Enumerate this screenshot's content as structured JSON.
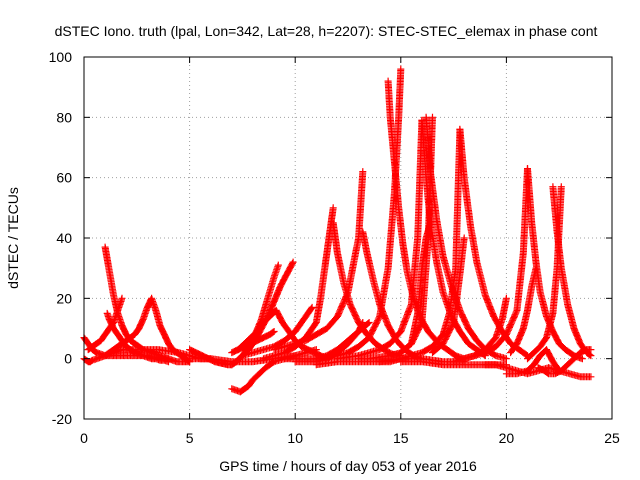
{
  "chart_data": {
    "type": "scatter",
    "title": "dSTEC Iono. truth (lpal, Lon=342, Lat=28, h=2207): STEC-STEC_elemax in phase cont",
    "xlabel": "GPS time / hours of day 053 of year 2016",
    "ylabel": "dSTEC  / TECUs",
    "xlim": [
      0,
      25
    ],
    "ylim": [
      -20,
      100
    ],
    "x_ticks": [
      0,
      5,
      10,
      15,
      20,
      25
    ],
    "y_ticks": [
      -20,
      0,
      20,
      40,
      60,
      80,
      100
    ],
    "x_tick_labels": [
      "0",
      "5",
      "10",
      "15",
      "20",
      "25"
    ],
    "y_tick_labels": [
      "-20",
      "0",
      "20",
      "40",
      "60",
      "80",
      "100"
    ],
    "grid": true,
    "marker": "+",
    "color": "#ff0000",
    "series": [
      {
        "x": [
          0.0,
          0.2,
          0.4,
          0.6,
          0.8,
          1.0,
          1.2,
          1.4,
          1.6,
          1.8,
          2.0,
          2.2,
          2.4,
          2.6,
          2.8,
          3.0,
          3.2,
          3.4,
          3.6,
          3.8,
          4.0
        ],
        "y": [
          7,
          5,
          3,
          2,
          1.5,
          1,
          1,
          1,
          1,
          1,
          1,
          1,
          1,
          1,
          1,
          1,
          0.5,
          0.5,
          0,
          0,
          0
        ]
      },
      {
        "x": [
          0.0,
          0.1,
          0.2,
          0.3,
          0.4,
          0.6,
          0.8,
          1.0,
          1.2,
          1.4,
          1.6,
          1.8,
          2.0
        ],
        "y": [
          0,
          -0.5,
          -1,
          -1,
          -0.5,
          0,
          0.5,
          1,
          1.5,
          2,
          2.5,
          3,
          3
        ]
      },
      {
        "x": [
          1.0,
          1.1,
          1.2,
          1.3,
          1.4,
          1.5,
          1.6,
          1.8,
          2.0,
          2.2,
          2.4,
          2.6,
          2.8,
          3.0,
          3.2,
          3.4,
          3.6,
          3.8,
          4.0,
          4.2,
          4.4,
          4.6,
          4.8,
          5.0
        ],
        "y": [
          37,
          33,
          29,
          25,
          21,
          18,
          15,
          11,
          8,
          6,
          5,
          4,
          3,
          2.5,
          2,
          1.5,
          1,
          0.5,
          0,
          -0.5,
          -1,
          -1,
          -1,
          -1
        ]
      },
      {
        "x": [
          0.2,
          0.4,
          0.6,
          0.8,
          1.0,
          1.2,
          1.4,
          1.6,
          1.7,
          1.8
        ],
        "y": [
          3,
          4,
          5,
          6,
          8,
          10,
          12,
          16,
          18,
          20
        ]
      },
      {
        "x": [
          1.1,
          1.2,
          1.4,
          1.6,
          1.8,
          2.0,
          2.2,
          2.4,
          2.6,
          2.8,
          3.0,
          3.2,
          3.4,
          3.6,
          3.8,
          4.0
        ],
        "y": [
          15,
          13,
          10,
          8,
          6,
          4,
          3,
          2,
          1.5,
          1,
          0.5,
          0,
          0,
          -0.5,
          -0.5,
          -1
        ]
      },
      {
        "x": [
          1.0,
          1.2,
          1.4,
          1.6,
          1.8,
          2.0,
          2.2,
          2.4,
          2.6,
          2.8,
          3.0,
          3.2,
          3.4,
          3.6,
          3.8,
          4.0,
          4.2,
          4.4,
          4.6,
          4.8,
          5.0
        ],
        "y": [
          1,
          2,
          3,
          4,
          5,
          6,
          7,
          8,
          10,
          13,
          17,
          20,
          16,
          11,
          8,
          5,
          3,
          2,
          1,
          0,
          -1
        ]
      },
      {
        "x": [
          2.0,
          2.5,
          3.0,
          3.5,
          4.0,
          4.5,
          5.0,
          5.5,
          6.0
        ],
        "y": [
          3,
          3,
          3,
          3,
          2.5,
          2,
          1,
          0,
          0
        ]
      },
      {
        "x": [
          5.0,
          5.3,
          5.6,
          5.9,
          6.2,
          6.5,
          6.8,
          7.0,
          7.2,
          7.5,
          7.8,
          8.1,
          8.4,
          8.7,
          9.0,
          9.2
        ],
        "y": [
          3,
          2,
          1,
          0,
          -1,
          -1.5,
          -2,
          -2,
          -1,
          1,
          4,
          8,
          13,
          20,
          27,
          31
        ]
      },
      {
        "x": [
          5.0,
          5.5,
          6.0,
          6.5,
          7.0,
          7.5,
          8.0,
          8.5,
          9.0,
          9.5,
          10.0
        ],
        "y": [
          0,
          0,
          0,
          -0.5,
          -1,
          -1,
          -1,
          -0.5,
          0,
          0.5,
          1
        ]
      },
      {
        "x": [
          7.0,
          7.2,
          7.5,
          7.8,
          8.1,
          8.4,
          8.7,
          9.0,
          9.3,
          9.6,
          9.9
        ],
        "y": [
          -2,
          -1,
          1,
          3,
          6,
          10,
          14,
          19,
          24,
          28,
          32
        ]
      },
      {
        "x": [
          7.0,
          7.3,
          7.6,
          7.9,
          8.2,
          8.5,
          8.8,
          9.0
        ],
        "y": [
          2,
          3,
          4,
          5,
          6,
          7,
          8,
          9
        ]
      },
      {
        "x": [
          7.0,
          7.2,
          7.4,
          7.6,
          7.8,
          8.0,
          8.3,
          8.6,
          9.0,
          9.5,
          10.0,
          10.5,
          11.0
        ],
        "y": [
          -10,
          -10.5,
          -11,
          -10,
          -9,
          -7,
          -5,
          -3,
          -1,
          0,
          1,
          2,
          3
        ]
      },
      {
        "x": [
          7.3,
          7.6,
          7.9,
          8.2,
          8.5,
          8.8,
          9.1,
          9.4,
          9.7,
          10.0,
          10.3,
          10.6,
          10.9,
          11.2,
          11.5
        ],
        "y": [
          3,
          5,
          7,
          9,
          12,
          14,
          16,
          12,
          9,
          6,
          4,
          3,
          2,
          1,
          0
        ]
      },
      {
        "x": [
          7.5,
          8.0,
          8.5,
          9.0,
          9.5,
          10.0,
          10.3,
          10.6,
          10.8
        ],
        "y": [
          1,
          2,
          3,
          4,
          6,
          9,
          12,
          15,
          17
        ]
      },
      {
        "x": [
          8.5,
          9.0,
          9.5,
          10.0,
          10.5,
          11.0,
          11.2,
          11.4,
          11.6,
          11.8
        ],
        "y": [
          0,
          1,
          2,
          4,
          7,
          12,
          20,
          30,
          40,
          50
        ]
      },
      {
        "x": [
          9.0,
          9.5,
          10.0,
          10.5,
          11.0,
          11.5,
          12.0,
          12.5,
          13.0,
          13.2
        ],
        "y": [
          3,
          4,
          5,
          6,
          8,
          10,
          14,
          22,
          40,
          62
        ]
      },
      {
        "x": [
          9.5,
          10.0,
          10.5,
          11.0,
          11.5,
          12.0,
          12.5,
          13.0,
          13.5
        ],
        "y": [
          0,
          0,
          0,
          0,
          1,
          3,
          6,
          9,
          12
        ]
      },
      {
        "x": [
          10.0,
          10.5,
          11.0,
          11.5,
          12.0,
          12.5,
          13.0,
          13.2
        ],
        "y": [
          -1,
          -1,
          -1,
          0,
          2,
          5,
          9,
          12
        ]
      },
      {
        "x": [
          11.8,
          12.0,
          12.3,
          12.6,
          13.0,
          13.4,
          13.8,
          14.2,
          14.6,
          15.0
        ],
        "y": [
          45,
          35,
          25,
          18,
          12,
          8,
          5,
          3,
          1.5,
          1
        ]
      },
      {
        "x": [
          13.2,
          13.4,
          13.7,
          14.0,
          14.4,
          14.8,
          15.2,
          15.6,
          16.0
        ],
        "y": [
          42,
          35,
          26,
          18,
          11,
          6,
          3,
          1,
          0
        ]
      },
      {
        "x": [
          11.0,
          11.5,
          12.0,
          12.5,
          13.0,
          13.5,
          14.0,
          14.4,
          14.7,
          14.9,
          15.0
        ],
        "y": [
          0,
          0.5,
          1,
          2,
          4,
          7,
          14,
          30,
          55,
          80,
          96
        ]
      },
      {
        "x": [
          14.4,
          14.5,
          14.7,
          14.9,
          15.1,
          15.3,
          15.6,
          15.9,
          16.3,
          16.8,
          17.2,
          17.6,
          18.0
        ],
        "y": [
          92,
          80,
          65,
          50,
          38,
          29,
          20,
          14,
          9,
          5,
          3,
          1,
          0
        ]
      },
      {
        "x": [
          12.0,
          12.5,
          13.0,
          13.5,
          14.0,
          14.5,
          15.0,
          15.5,
          15.8,
          16.0
        ],
        "y": [
          0,
          0.5,
          1,
          2,
          3,
          5,
          9,
          18,
          40,
          79
        ]
      },
      {
        "x": [
          16.0,
          16.2,
          16.4,
          16.7,
          17.0,
          17.4,
          17.8,
          18.2,
          18.6,
          19.0
        ],
        "y": [
          79,
          60,
          45,
          32,
          22,
          14,
          9,
          5,
          3,
          1
        ]
      },
      {
        "x": [
          13.0,
          13.5,
          14.0,
          14.5,
          15.0,
          15.5,
          16.0,
          16.3,
          16.5
        ],
        "y": [
          0,
          0,
          0.5,
          1,
          2,
          5,
          12,
          40,
          80
        ]
      },
      {
        "x": [
          16.2,
          16.4,
          16.7,
          17.0,
          17.4,
          17.8,
          18.2,
          18.6,
          19.0,
          19.5,
          20.0
        ],
        "y": [
          80,
          62,
          46,
          34,
          24,
          16,
          10,
          6,
          3,
          1,
          0
        ]
      },
      {
        "x": [
          15.5,
          15.8,
          16.0,
          16.2,
          16.4
        ],
        "y": [
          5,
          15,
          30,
          40,
          45
        ]
      },
      {
        "x": [
          14.0,
          14.5,
          15.0,
          15.5,
          16.0,
          16.5,
          17.0,
          17.3,
          17.6,
          17.8
        ],
        "y": [
          -1,
          -1,
          0,
          1,
          2,
          4,
          8,
          15,
          30,
          76
        ]
      },
      {
        "x": [
          17.8,
          18.0,
          18.3,
          18.6,
          19.0,
          19.4,
          19.8,
          20.2,
          20.6,
          21.0
        ],
        "y": [
          76,
          60,
          44,
          32,
          21,
          14,
          9,
          5,
          3,
          1
        ]
      },
      {
        "x": [
          16.5,
          17.0,
          17.5,
          17.8,
          18.0
        ],
        "y": [
          2,
          5,
          12,
          28,
          40
        ]
      },
      {
        "x": [
          17.5,
          18.0,
          18.5,
          19.0,
          19.5,
          19.8,
          20.0
        ],
        "y": [
          -1,
          0,
          1,
          3,
          7,
          13,
          20
        ]
      },
      {
        "x": [
          18.0,
          18.5,
          19.0,
          19.5,
          20.0,
          20.5,
          20.8,
          21.0
        ],
        "y": [
          0,
          1,
          2,
          4,
          8,
          16,
          35,
          63
        ]
      },
      {
        "x": [
          21.0,
          21.2,
          21.4,
          21.6,
          21.9,
          22.2,
          22.5,
          22.8,
          23.2,
          23.6
        ],
        "y": [
          63,
          45,
          32,
          22,
          14,
          9,
          5,
          3,
          1,
          0
        ]
      },
      {
        "x": [
          20.2,
          20.5,
          20.8,
          21.0,
          21.2,
          21.4
        ],
        "y": [
          2,
          5,
          10,
          16,
          24,
          30
        ]
      },
      {
        "x": [
          20.0,
          20.5,
          21.0,
          21.3,
          21.6,
          21.9,
          22.2,
          22.5
        ],
        "y": [
          -5,
          -5,
          -4,
          -2,
          1,
          3,
          -1,
          -4
        ]
      },
      {
        "x": [
          21.0,
          21.3,
          21.6,
          21.9,
          22.2,
          22.4,
          22.6
        ],
        "y": [
          0,
          2,
          4,
          7,
          15,
          30,
          57
        ]
      },
      {
        "x": [
          22.2,
          22.4,
          22.6,
          22.9,
          23.2,
          23.5,
          23.8,
          24.0
        ],
        "y": [
          57,
          42,
          30,
          18,
          10,
          5,
          2,
          1
        ]
      },
      {
        "x": [
          21.5,
          21.8,
          22.0,
          22.3,
          22.6,
          22.9,
          23.2,
          23.5,
          23.8,
          24.0
        ],
        "y": [
          -3,
          -4,
          -5,
          -5,
          -4,
          -2,
          0,
          2,
          3,
          3
        ]
      },
      {
        "x": [
          22.0,
          22.5,
          23.0,
          23.5,
          24.0
        ],
        "y": [
          -3,
          -4,
          -5,
          -6,
          -6
        ]
      },
      {
        "x": [
          19.0,
          19.5,
          20.0,
          20.5,
          21.0,
          21.5,
          22.0
        ],
        "y": [
          -2,
          -2,
          -3,
          -4,
          -5,
          -4,
          -3
        ]
      },
      {
        "x": [
          15.0,
          16.0,
          17.0,
          18.0,
          19.0,
          19.5,
          20.0
        ],
        "y": [
          -1,
          -1,
          -2,
          -2,
          -2,
          -2,
          -2
        ]
      },
      {
        "x": [
          11.0,
          12.0,
          13.0,
          14.0,
          15.0,
          16.0,
          17.0,
          18.0
        ],
        "y": [
          -2,
          -1,
          -1,
          -1,
          0,
          0,
          -1,
          -1
        ]
      }
    ]
  }
}
